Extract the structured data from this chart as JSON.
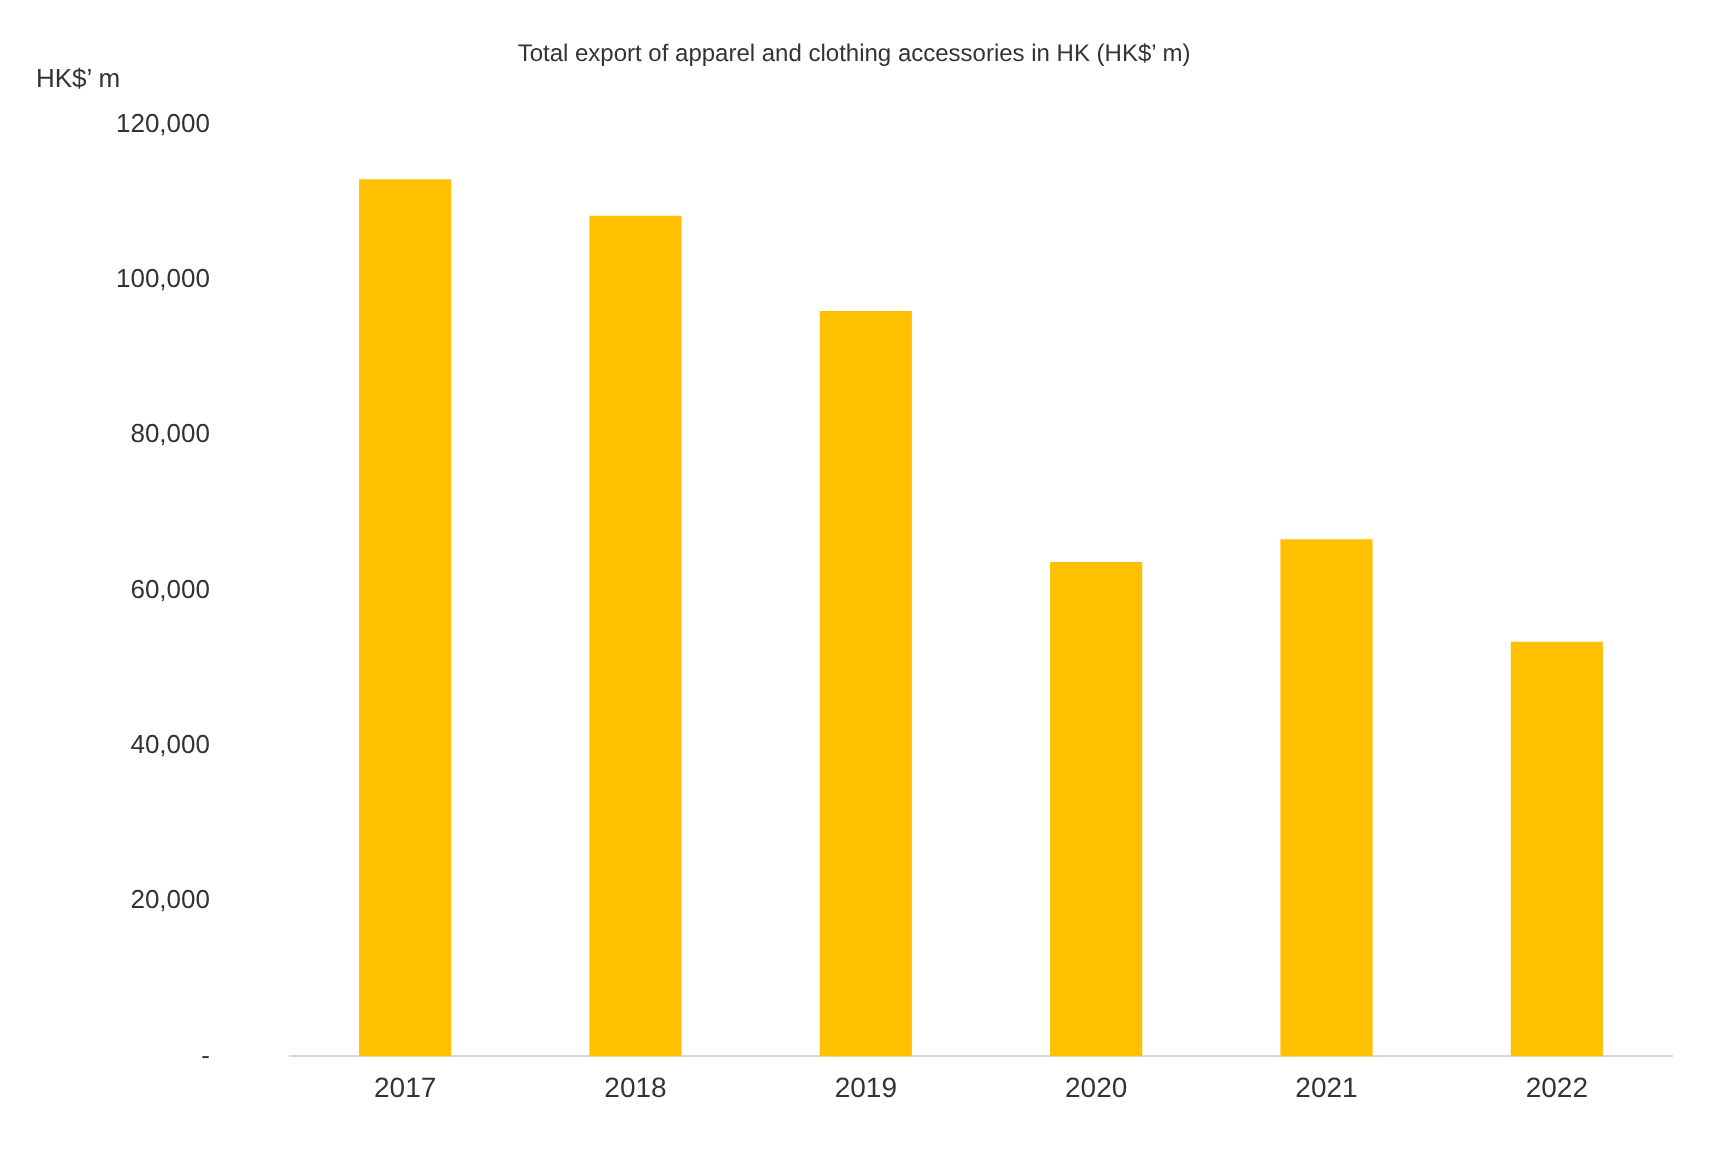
{
  "chart_data": {
    "type": "bar",
    "title": "Total export of apparel and clothing accessories in HK (HK$’ m)",
    "ylabel": "HK$’ m",
    "categories": [
      "2017",
      "2018",
      "2019",
      "2020",
      "2021",
      "2022"
    ],
    "values": [
      113000,
      108300,
      96000,
      63700,
      66600,
      53400
    ],
    "color": "#ffc000",
    "ylim": [
      0,
      120000
    ],
    "yticks": [
      {
        "value": 0,
        "label": "-"
      },
      "20,000",
      {
        "value": 40000,
        "label": "40,000"
      },
      {
        "value": 60000,
        "label": "60,000"
      },
      {
        "value": 80000,
        "label": "80,000"
      },
      {
        "value": 100000,
        "label": "100,000"
      },
      {
        "value": 120000,
        "label": "120,000"
      }
    ],
    "grid": false,
    "legend": false
  }
}
